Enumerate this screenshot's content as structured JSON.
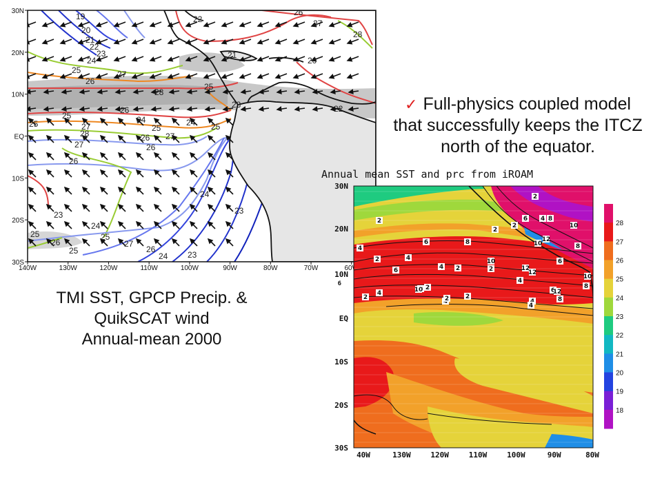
{
  "captions": {
    "observation": [
      "TMI SST, GPCP Precip. &",
      "QuikSCAT wind",
      "Annual-mean 2000"
    ],
    "model_claim": [
      "Full-physics coupled model",
      "that successfully keeps the ITCZ",
      "north of the equator."
    ],
    "checkmark": "✓"
  },
  "obs_map": {
    "lat_ticks": [
      "30N",
      "20N",
      "10N",
      "EQ",
      "10S",
      "20S",
      "30S"
    ],
    "lon_ticks": [
      "140W",
      "130W",
      "120W",
      "110W",
      "100W",
      "90W",
      "80W",
      "70W",
      "60W"
    ],
    "sst_contour_labels": [
      "19",
      "20",
      "21",
      "22",
      "23",
      "24",
      "25",
      "26",
      "27",
      "28",
      "25",
      "26",
      "25",
      "27",
      "28",
      "27",
      "26",
      "24",
      "25",
      "26",
      "26",
      "27",
      "25",
      "24",
      "23",
      "23",
      "24",
      "25",
      "26",
      "27",
      "26",
      "25",
      "24",
      "23",
      "24",
      "23",
      "22",
      "21",
      "22",
      "20",
      "26",
      "27",
      "28",
      "25",
      "25"
    ],
    "colors": {
      "sst_cool": "#2233cc",
      "sst_mid": "#7799ee",
      "sst_green": "#99cc33",
      "sst_orange": "#ee8822",
      "sst_red": "#dd2222",
      "precip": "#bdbdbd",
      "land": "#cfcfcf"
    }
  },
  "model_map": {
    "title": "Annual mean SST and prc from iROAM",
    "lat_ticks": [
      "30N",
      "20N",
      "10N",
      "EQ",
      "10S",
      "20S",
      "30S"
    ],
    "lat_sub": "6",
    "lon_ticks": [
      "40W",
      "130W",
      "120W",
      "110W",
      "100W",
      "90W",
      "80W"
    ],
    "colorbar_labels": [
      "28",
      "27",
      "26",
      "25",
      "24",
      "23",
      "22",
      "21",
      "20",
      "19",
      "18"
    ],
    "colorbar_colors": [
      "#e0106a",
      "#e8191a",
      "#ef6d1e",
      "#f2a12a",
      "#e5d33a",
      "#9fd83c",
      "#1fcb80",
      "#12b8c2",
      "#1f8ee6",
      "#2343e0",
      "#7a1fd6",
      "#b012c4"
    ],
    "precip_labels": [
      "2",
      "2",
      "4",
      "2",
      "2",
      "6",
      "8",
      "10",
      "12",
      "10",
      "8",
      "6",
      "4",
      "2",
      "4",
      "6",
      "8",
      "10",
      "12",
      "12",
      "10",
      "8",
      "6",
      "4",
      "2",
      "2",
      "4",
      "6",
      "8",
      "2",
      "4",
      "2",
      "2",
      "4",
      "8",
      "4",
      "2",
      "4",
      "10",
      "12"
    ]
  }
}
